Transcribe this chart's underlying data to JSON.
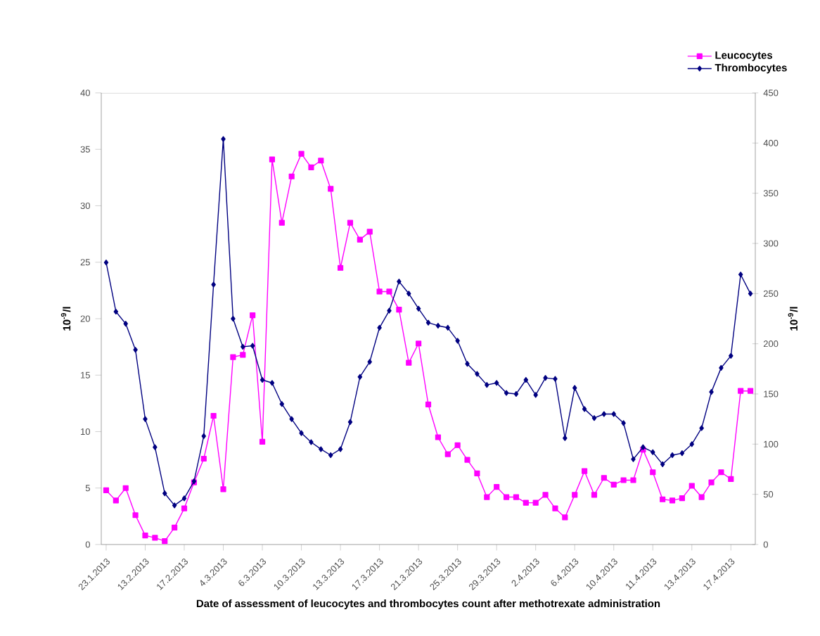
{
  "chart_data": {
    "type": "line",
    "xlabel": "Date of assessment of leucocytes and thrombocytes count after methotrexate administration",
    "ylabel": "10$^{-9}$/l",
    "y2label": "10$^{-9}$/l",
    "categories": [
      "23.1.2013",
      null,
      null,
      null,
      "13.2.2013",
      null,
      null,
      null,
      "17.2.2013",
      null,
      null,
      null,
      "4.3.2013",
      null,
      null,
      null,
      "6.3.2013",
      null,
      null,
      null,
      "10.3.2013",
      null,
      null,
      null,
      "13.3.2013",
      null,
      null,
      null,
      "17.3.2013",
      null,
      null,
      null,
      "21.3.2013",
      null,
      null,
      null,
      "25.3.2013",
      null,
      null,
      null,
      "29.3.2013",
      null,
      null,
      null,
      "2.4.2013",
      null,
      null,
      null,
      "6.4.2013",
      null,
      null,
      null,
      "10.4.2013",
      null,
      null,
      null,
      "11.4.2013",
      null,
      null,
      null,
      "13.4.2013",
      null,
      null,
      null,
      "17.4.2013",
      null,
      null
    ],
    "series": [
      {
        "name": "Leucocytes",
        "color": "#ff00ff",
        "marker": "square",
        "values": [
          4.8,
          3.9,
          5.0,
          2.6,
          0.8,
          0.6,
          0.3,
          1.5,
          3.2,
          5.5,
          7.6,
          11.4,
          4.9,
          16.6,
          16.8,
          20.3,
          9.1,
          34.1,
          28.5,
          32.6,
          34.6,
          33.4,
          34.0,
          31.5,
          24.5,
          28.5,
          27.0,
          27.7,
          22.4,
          22.4,
          20.8,
          16.1,
          17.8,
          12.4,
          9.5,
          8.0,
          8.8,
          7.5,
          6.3,
          4.2,
          5.1,
          4.2,
          4.2,
          3.7,
          3.7,
          4.4,
          3.2,
          2.4,
          4.4,
          6.5,
          4.4,
          5.9,
          5.3,
          5.7,
          5.7,
          8.4,
          6.4,
          4.0,
          3.9,
          4.1,
          5.2,
          4.2,
          5.5,
          6.4,
          5.8,
          13.6,
          13.6
        ]
      },
      {
        "name": "Thrombocytes",
        "color": "#000080",
        "marker": "diamond",
        "axis": "y2",
        "values": [
          281,
          232,
          220,
          194,
          125,
          97,
          51,
          39,
          46,
          63,
          108,
          259,
          404,
          225,
          197,
          198,
          164,
          161,
          140,
          125,
          111,
          102,
          95,
          89,
          95,
          122,
          167,
          182,
          216,
          233,
          262,
          250,
          235,
          221,
          218,
          216,
          203,
          180,
          170,
          159,
          161,
          151,
          150,
          164,
          149,
          166,
          165,
          106,
          156,
          135,
          126,
          130,
          130,
          121,
          85,
          97,
          92,
          80,
          89,
          91,
          100,
          116,
          152,
          176,
          188,
          269,
          250
        ]
      }
    ],
    "ylim": [
      0,
      40
    ],
    "yticks": [
      0,
      5,
      10,
      15,
      20,
      25,
      30,
      35,
      40
    ],
    "y2lim": [
      0,
      450
    ],
    "y2ticks": [
      0,
      50,
      100,
      150,
      200,
      250,
      300,
      350,
      400,
      450
    ],
    "grid": false,
    "legend": "top right"
  }
}
